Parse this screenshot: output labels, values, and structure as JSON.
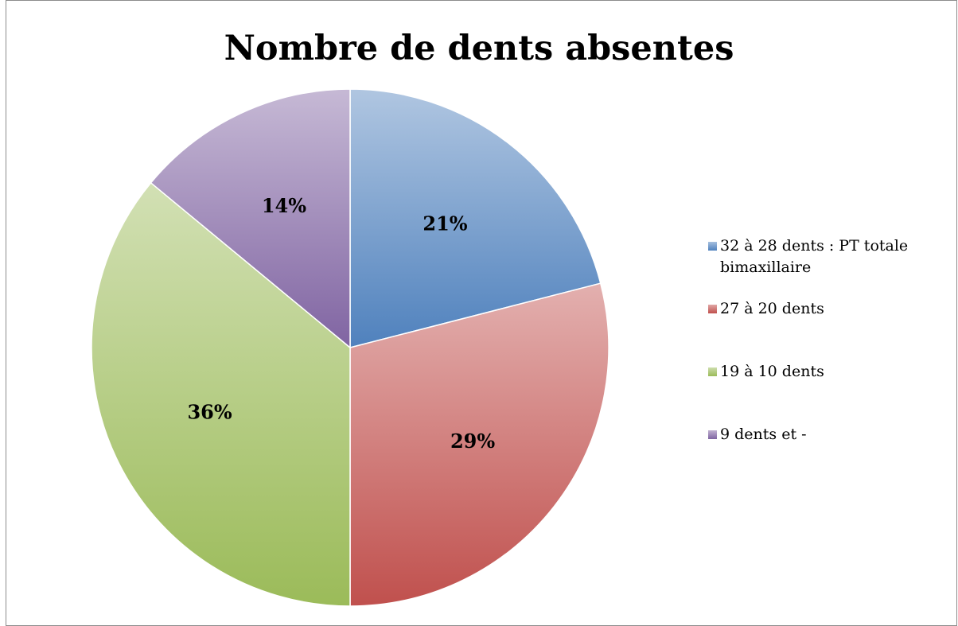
{
  "chart_data": {
    "type": "pie",
    "title": "Nombre de dents absentes",
    "categories": [
      "32 à 28 dents : PT totale bimaxillaire",
      "27 à 20 dents",
      "19 à 10 dents",
      "9 dents et -"
    ],
    "values": [
      21,
      29,
      36,
      14
    ],
    "value_labels": [
      "21%",
      "29%",
      "36%",
      "14%"
    ],
    "colors": [
      "#4f81bd",
      "#c0504d",
      "#9bbb59",
      "#8064a2"
    ],
    "legend": "right"
  }
}
